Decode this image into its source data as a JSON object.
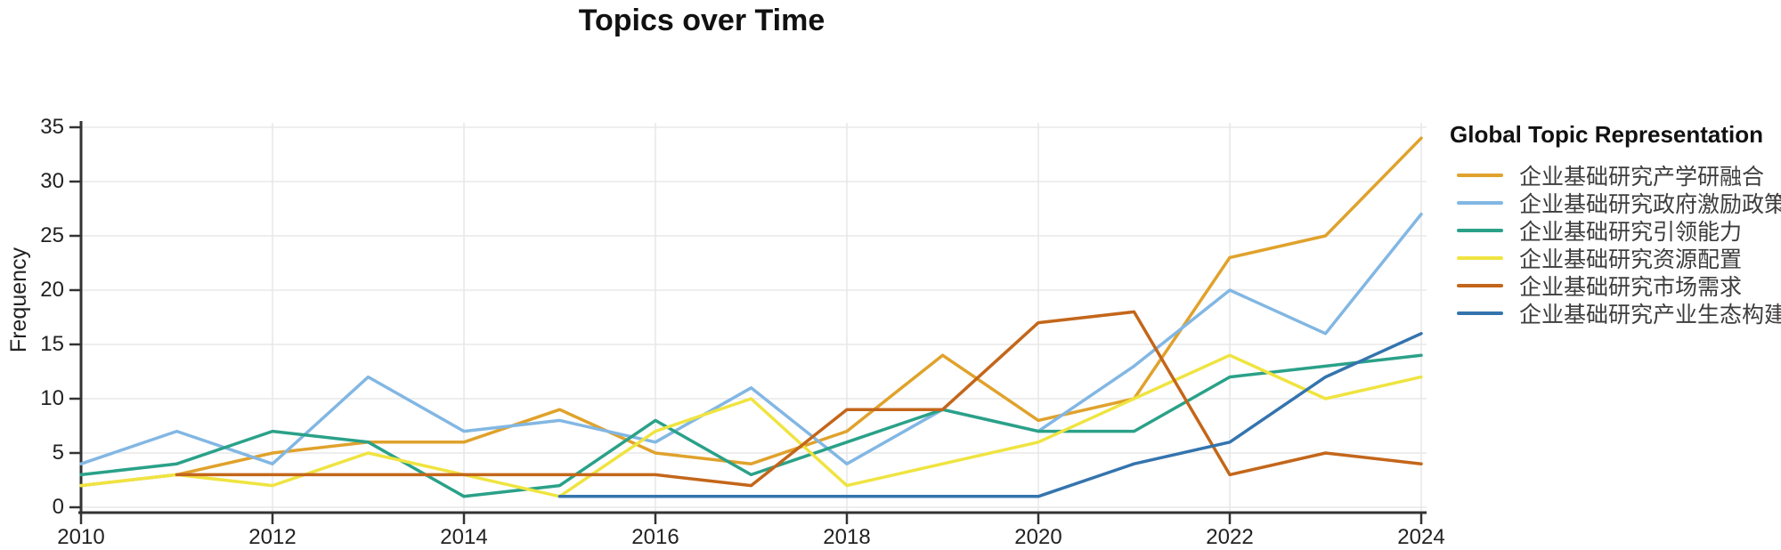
{
  "chart_data": {
    "type": "line",
    "title": "Topics over Time",
    "xlabel": "",
    "ylabel": "Frequency",
    "legend_title": "Global Topic Representation",
    "legend_position": "right",
    "grid": true,
    "x": [
      2010,
      2011,
      2012,
      2013,
      2014,
      2015,
      2016,
      2017,
      2018,
      2019,
      2020,
      2021,
      2022,
      2023,
      2024
    ],
    "xticks": [
      2010,
      2012,
      2014,
      2016,
      2018,
      2020,
      2022,
      2024
    ],
    "yticks": [
      0,
      5,
      10,
      15,
      20,
      25,
      30,
      35
    ],
    "xlim": [
      2010,
      2024
    ],
    "ylim": [
      0,
      35
    ],
    "series": [
      {
        "name": "企业基础研究产学研融合",
        "color": "#E0A22C",
        "values": [
          2,
          3,
          5,
          6,
          6,
          9,
          5,
          4,
          7,
          14,
          8,
          10,
          23,
          25,
          34
        ]
      },
      {
        "name": "企业基础研究政府激励政策",
        "color": "#82B7E3",
        "values": [
          4,
          7,
          4,
          12,
          7,
          8,
          6,
          11,
          4,
          9,
          7,
          13,
          20,
          16,
          27
        ]
      },
      {
        "name": "企业基础研究引领能力",
        "color": "#2AA188",
        "values": [
          3,
          4,
          7,
          6,
          1,
          2,
          8,
          3,
          6,
          9,
          7,
          7,
          12,
          13,
          14
        ]
      },
      {
        "name": "企业基础研究资源配置",
        "color": "#EFE440",
        "values": [
          2,
          3,
          2,
          5,
          3,
          1,
          7,
          10,
          2,
          4,
          6,
          10,
          14,
          10,
          12
        ]
      },
      {
        "name": "企业基础研究市场需求",
        "color": "#C3661A",
        "values": [
          null,
          3,
          3,
          3,
          3,
          3,
          3,
          2,
          9,
          9,
          17,
          18,
          3,
          5,
          4
        ]
      },
      {
        "name": "企业基础研究产业生态构建",
        "color": "#3474AE",
        "values": [
          null,
          null,
          null,
          null,
          null,
          1,
          1,
          1,
          1,
          1,
          1,
          4,
          6,
          12,
          16
        ]
      }
    ]
  }
}
